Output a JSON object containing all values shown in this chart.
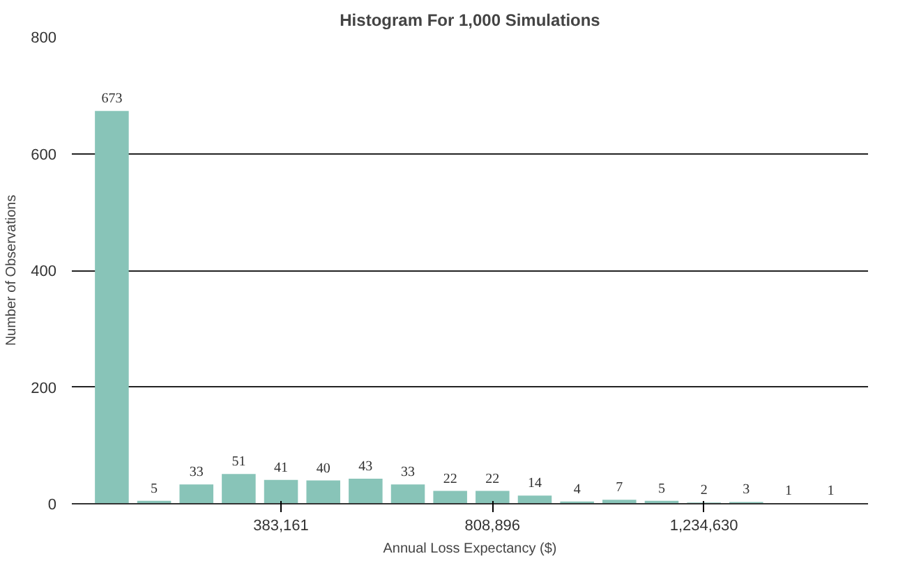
{
  "chart_data": {
    "type": "histogram",
    "title": "Histogram For 1,000 Simulations",
    "xlabel": "Annual Loss Expectancy ($)",
    "ylabel": "Number of Observations",
    "bins": [
      0,
      85147,
      170294,
      255441,
      340588,
      425735,
      510882,
      596029,
      681176,
      766323,
      851470,
      936617,
      1021764,
      1106911,
      1192058,
      1277205,
      1362352,
      1447499,
      1532646
    ],
    "values": [
      673,
      5,
      33,
      51,
      41,
      40,
      43,
      33,
      22,
      22,
      14,
      4,
      7,
      5,
      2,
      3,
      1,
      1
    ],
    "color": "#88c4b8",
    "data_labels": true,
    "xlim": [
      -38000,
      1565000
    ],
    "xticks": [
      {
        "value": 383161,
        "label": "383,161"
      },
      {
        "value": 808896,
        "label": "808,896"
      },
      {
        "value": 1234630,
        "label": "1,234,630"
      }
    ],
    "ylim": [
      0,
      800
    ],
    "yticks": [
      0,
      200,
      400,
      600,
      800
    ],
    "grid": "y"
  }
}
